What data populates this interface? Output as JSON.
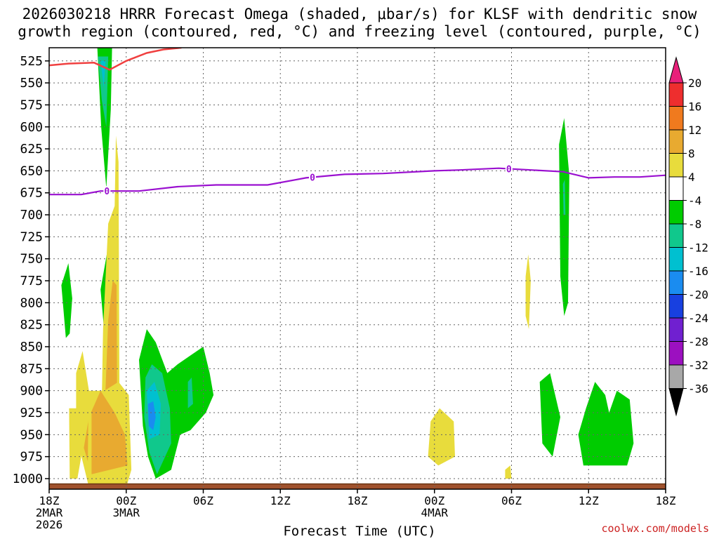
{
  "title_line1": "2026030218 HRRR Forecast Omega (shaded, μbar/s) for KLSF with dendritic snow",
  "title_line2": "growth region (contoured, red, °C) and freezing level (contoured, purple, °C)",
  "credit": "coolwx.com/models",
  "chart_data": {
    "type": "heatmap",
    "title": "2026030218 HRRR Forecast Omega (shaded, μbar/s) for KLSF with dendritic snow growth region (contoured, red, °C) and freezing level (contoured, purple, °C)",
    "xlabel": "Forecast Time (UTC)",
    "ylabel": "",
    "x_range_hours": [
      0,
      48
    ],
    "x_ticks": [
      {
        "hour": 0,
        "lines": [
          "18Z",
          "2MAR",
          "2026"
        ]
      },
      {
        "hour": 6,
        "lines": [
          "00Z",
          "3MAR"
        ]
      },
      {
        "hour": 12,
        "lines": [
          "06Z"
        ]
      },
      {
        "hour": 18,
        "lines": [
          "12Z"
        ]
      },
      {
        "hour": 24,
        "lines": [
          "18Z"
        ]
      },
      {
        "hour": 30,
        "lines": [
          "00Z",
          "4MAR"
        ]
      },
      {
        "hour": 36,
        "lines": [
          "06Z"
        ]
      },
      {
        "hour": 42,
        "lines": [
          "12Z"
        ]
      },
      {
        "hour": 48,
        "lines": [
          "18Z"
        ]
      }
    ],
    "y_range_hpa": [
      1012,
      510
    ],
    "y_ticks": [
      525,
      550,
      575,
      600,
      625,
      650,
      675,
      700,
      725,
      750,
      775,
      800,
      825,
      850,
      875,
      900,
      925,
      950,
      975,
      1000
    ],
    "grid": true,
    "colorbar": {
      "labels": [
        "20",
        "16",
        "12",
        "8",
        "4",
        "-4",
        "-8",
        "-12",
        "-16",
        "-20",
        "-24",
        "-28",
        "-32",
        "-36"
      ],
      "colors": [
        "#e8207a",
        "#ee2e2e",
        "#f07a1e",
        "#e8aa30",
        "#e8dc3c",
        "#ffffff",
        "#00cc00",
        "#10c88c",
        "#00c0d0",
        "#1a8cf0",
        "#1840e0",
        "#7020d0",
        "#9c10c0",
        "#a8a8a8",
        "#000000"
      ]
    },
    "omega_regions": [
      {
        "value": 4,
        "points": [
          [
            4.57,
            510
          ],
          [
            4.79,
            510
          ],
          [
            4.68,
            530
          ]
        ]
      },
      {
        "value": -8,
        "points": [
          [
            3.6,
            510
          ],
          [
            4.9,
            510
          ],
          [
            4.8,
            580
          ],
          [
            4.45,
            670
          ],
          [
            4.05,
            600
          ],
          [
            3.75,
            510
          ]
        ]
      },
      {
        "value": -12,
        "points": [
          [
            3.8,
            520
          ],
          [
            4.6,
            520
          ],
          [
            4.45,
            600
          ],
          [
            4.1,
            570
          ]
        ]
      },
      {
        "value": -16,
        "points": [
          [
            4.0,
            525
          ],
          [
            4.4,
            525
          ],
          [
            4.25,
            555
          ]
        ]
      },
      {
        "value": -8,
        "points": [
          [
            4.0,
            785
          ],
          [
            4.55,
            740
          ],
          [
            4.6,
            850
          ],
          [
            4.3,
            835
          ]
        ]
      },
      {
        "value": 4,
        "points": [
          [
            4.6,
            710
          ],
          [
            5.1,
            690
          ],
          [
            5.2,
            610
          ],
          [
            5.4,
            640
          ],
          [
            5.5,
            1010
          ],
          [
            4.6,
            1010
          ],
          [
            4.1,
            910
          ],
          [
            4.2,
            830
          ]
        ]
      },
      {
        "value": 8,
        "points": [
          [
            4.6,
            820
          ],
          [
            4.95,
            775
          ],
          [
            5.25,
            780
          ],
          [
            5.3,
            930
          ],
          [
            5.6,
            975
          ],
          [
            4.7,
            990
          ],
          [
            4.2,
            970
          ]
        ]
      },
      {
        "value": 4,
        "points": [
          [
            2.1,
            880
          ],
          [
            2.6,
            855
          ],
          [
            3.1,
            900
          ],
          [
            4.3,
            900
          ],
          [
            5.4,
            890
          ],
          [
            6.2,
            905
          ],
          [
            6.4,
            990
          ],
          [
            6.0,
            1010
          ],
          [
            3.1,
            1010
          ],
          [
            2.1,
            950
          ]
        ]
      },
      {
        "value": 8,
        "points": [
          [
            3.1,
            930
          ],
          [
            4.0,
            900
          ],
          [
            5.1,
            925
          ],
          [
            5.9,
            950
          ],
          [
            6.1,
            985
          ],
          [
            3.3,
            995
          ],
          [
            2.7,
            965
          ]
        ]
      },
      {
        "value": 4,
        "points": [
          [
            1.55,
            920
          ],
          [
            2.3,
            920
          ],
          [
            2.5,
            975
          ],
          [
            2.2,
            1000
          ],
          [
            1.6,
            1000
          ]
        ]
      },
      {
        "value": 4,
        "points": [
          [
            3.05,
            925
          ],
          [
            3.3,
            925
          ],
          [
            3.3,
            1000
          ],
          [
            3.0,
            995
          ]
        ]
      },
      {
        "value": -8,
        "points": [
          [
            0.95,
            780
          ],
          [
            1.5,
            755
          ],
          [
            1.8,
            795
          ],
          [
            1.6,
            835
          ],
          [
            1.3,
            840
          ]
        ]
      },
      {
        "value": -8,
        "points": [
          [
            7.0,
            865
          ],
          [
            7.6,
            830
          ],
          [
            8.3,
            845
          ],
          [
            9.2,
            880
          ],
          [
            10.0,
            870
          ],
          [
            11.0,
            860
          ],
          [
            12.0,
            850
          ],
          [
            12.5,
            880
          ],
          [
            12.8,
            905
          ],
          [
            12.2,
            925
          ],
          [
            11.0,
            945
          ],
          [
            10.2,
            950
          ],
          [
            9.5,
            990
          ],
          [
            8.3,
            1000
          ],
          [
            7.7,
            975
          ],
          [
            7.3,
            940
          ]
        ]
      },
      {
        "value": -12,
        "points": [
          [
            7.5,
            885
          ],
          [
            8.0,
            870
          ],
          [
            8.8,
            880
          ],
          [
            9.4,
            920
          ],
          [
            9.5,
            960
          ],
          [
            8.4,
            995
          ],
          [
            7.8,
            970
          ],
          [
            7.4,
            930
          ]
        ]
      },
      {
        "value": -12,
        "points": [
          [
            10.8,
            890
          ],
          [
            11.1,
            885
          ],
          [
            11.2,
            915
          ],
          [
            10.8,
            920
          ]
        ]
      },
      {
        "value": -16,
        "points": [
          [
            7.6,
            900
          ],
          [
            8.2,
            890
          ],
          [
            8.7,
            915
          ],
          [
            8.6,
            950
          ],
          [
            7.8,
            955
          ]
        ]
      },
      {
        "value": -20,
        "points": [
          [
            7.7,
            915
          ],
          [
            8.1,
            912
          ],
          [
            8.3,
            930
          ],
          [
            8.1,
            945
          ],
          [
            7.75,
            940
          ]
        ]
      },
      {
        "value": 4,
        "points": [
          [
            29.7,
            935
          ],
          [
            30.4,
            920
          ],
          [
            31.5,
            935
          ],
          [
            31.6,
            975
          ],
          [
            30.3,
            985
          ],
          [
            29.5,
            975
          ]
        ]
      },
      {
        "value": 4,
        "points": [
          [
            35.5,
            990
          ],
          [
            35.9,
            985
          ],
          [
            36.0,
            1000
          ],
          [
            35.5,
            1000
          ]
        ]
      },
      {
        "value": 4,
        "points": [
          [
            37.1,
            770
          ],
          [
            37.3,
            745
          ],
          [
            37.5,
            775
          ],
          [
            37.35,
            830
          ],
          [
            37.1,
            815
          ]
        ]
      },
      {
        "value": -8,
        "points": [
          [
            39.7,
            620
          ],
          [
            40.1,
            590
          ],
          [
            40.5,
            655
          ],
          [
            40.4,
            800
          ],
          [
            40.1,
            815
          ],
          [
            39.8,
            770
          ]
        ]
      },
      {
        "value": -12,
        "points": [
          [
            40.0,
            665
          ],
          [
            40.15,
            660
          ],
          [
            40.2,
            700
          ],
          [
            40.05,
            700
          ]
        ]
      },
      {
        "value": -8,
        "points": [
          [
            38.2,
            890
          ],
          [
            39.0,
            880
          ],
          [
            39.8,
            930
          ],
          [
            39.2,
            975
          ],
          [
            38.4,
            960
          ]
        ]
      },
      {
        "value": -8,
        "points": [
          [
            41.8,
            920
          ],
          [
            42.5,
            890
          ],
          [
            43.3,
            905
          ],
          [
            43.6,
            925
          ],
          [
            44.2,
            900
          ],
          [
            45.2,
            910
          ],
          [
            45.5,
            960
          ],
          [
            45.0,
            985
          ],
          [
            43.0,
            985
          ],
          [
            41.6,
            985
          ],
          [
            41.2,
            950
          ]
        ]
      }
    ],
    "dgz_minus12C_contour": [
      [
        0,
        530
      ],
      [
        1.5,
        528
      ],
      [
        3.5,
        527
      ],
      [
        4.7,
        535
      ],
      [
        6,
        525
      ],
      [
        7.6,
        516
      ],
      [
        8.9,
        512
      ],
      [
        10.3,
        510
      ]
    ],
    "freezing_level_0C_contour": {
      "points": [
        [
          0,
          677
        ],
        [
          2.5,
          677
        ],
        [
          4,
          673
        ],
        [
          7,
          673
        ],
        [
          10,
          668
        ],
        [
          13,
          666
        ],
        [
          17,
          666
        ],
        [
          20,
          658
        ],
        [
          23,
          654
        ],
        [
          26,
          653
        ],
        [
          30,
          650
        ],
        [
          32,
          649
        ],
        [
          35,
          647
        ],
        [
          40,
          651
        ],
        [
          42,
          658
        ],
        [
          44,
          657
        ],
        [
          46,
          657
        ],
        [
          48,
          655
        ]
      ],
      "labels": [
        {
          "hour": 4.5,
          "text": "0"
        },
        {
          "hour": 20.5,
          "text": "0"
        },
        {
          "hour": 35.8,
          "text": "0"
        }
      ]
    },
    "terrain": {
      "surface_hpa": 1006
    }
  }
}
